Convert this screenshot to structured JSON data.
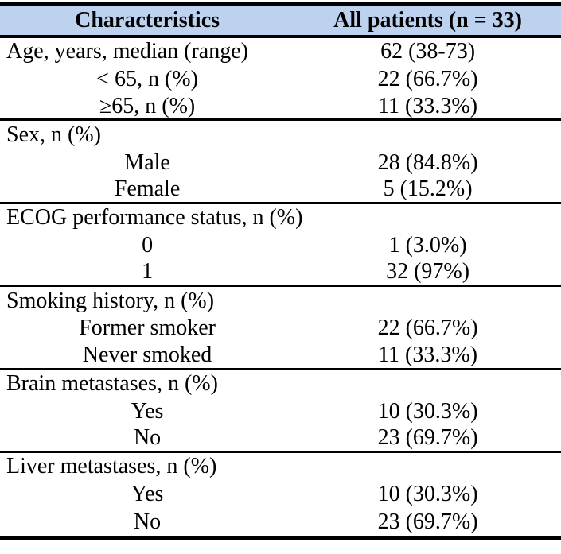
{
  "table": {
    "header": {
      "col1": "Characteristics",
      "col2": "All patients (n = 33)"
    },
    "header_bg": "#bdd2ee",
    "border_color": "#000000",
    "rows": [
      {
        "label": "Age, years, median (range)",
        "value": "62 (38-73)",
        "indent": false,
        "divider": false
      },
      {
        "label": "< 65, n (%)",
        "value": "22 (66.7%)",
        "indent": true,
        "divider": false
      },
      {
        "label": "≥65, n (%)",
        "value": "11 (33.3%)",
        "indent": true,
        "divider": true
      },
      {
        "label": "Sex, n (%)",
        "value": "",
        "indent": false,
        "divider": false
      },
      {
        "label": "Male",
        "value": "28 (84.8%)",
        "indent": true,
        "divider": false
      },
      {
        "label": "Female",
        "value": "5 (15.2%)",
        "indent": true,
        "divider": true
      },
      {
        "label": "ECOG performance status, n (%)",
        "value": "",
        "indent": false,
        "divider": false
      },
      {
        "label": "0",
        "value": "1 (3.0%)",
        "indent": true,
        "divider": false
      },
      {
        "label": "1",
        "value": "32 (97%)",
        "indent": true,
        "divider": true
      },
      {
        "label": "Smoking history, n (%)",
        "value": "",
        "indent": false,
        "divider": false
      },
      {
        "label": "Former smoker",
        "value": "22 (66.7%)",
        "indent": true,
        "divider": false
      },
      {
        "label": "Never smoked",
        "value": "11 (33.3%)",
        "indent": true,
        "divider": true
      },
      {
        "label": "Brain metastases, n (%)",
        "value": "",
        "indent": false,
        "divider": false
      },
      {
        "label": "Yes",
        "value": "10 (30.3%)",
        "indent": true,
        "divider": false
      },
      {
        "label": "No",
        "value": "23 (69.7%)",
        "indent": true,
        "divider": true
      },
      {
        "label": "Liver metastases, n (%)",
        "value": "",
        "indent": false,
        "divider": false
      },
      {
        "label": "Yes",
        "value": "10 (30.3%)",
        "indent": true,
        "divider": false
      },
      {
        "label": "No",
        "value": "23 (69.7%)",
        "indent": true,
        "divider": false
      }
    ]
  }
}
